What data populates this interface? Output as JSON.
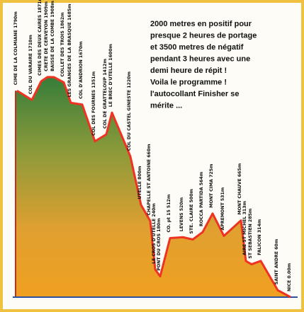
{
  "chart_data": {
    "type": "elevation-profile",
    "points": [
      {
        "label": "CIME DE LA COLMIANE 1790m",
        "value": 1790
      },
      {
        "label": "COL DU VARAIRE 1710m",
        "value": 1710
      },
      {
        "label": "CIMES DES DEUX CAIRES 1871m",
        "value": 1871
      },
      {
        "label": "CRETE DE CERVEYON 1909m",
        "value": 1909
      },
      {
        "label": "BAISSE DE LA COMBE 1908m",
        "value": 1908
      },
      {
        "label": "COLLET DES TROIS 1862m",
        "value": 1862
      },
      {
        "label": "LES GRANGES DE LA BRASQUE 1685m",
        "value": 1685
      },
      {
        "label": "COL D'ANDRION 1670m",
        "value": 1670
      },
      {
        "label": "COL DES FOURNES 1351m",
        "value": 1351
      },
      {
        "label": "COL DE GRATTELOUP 1412m",
        "value": 1412
      },
      {
        "label": "LE BREC D'UTELLE 1600m",
        "value": 1600
      },
      {
        "label": "COL DU CASTEL GINESTE 1220m",
        "value": 1220
      },
      {
        "label": "UTELLE 800m",
        "value": 800
      },
      {
        "label": "CHAPELLE ST ANTOINE 660m",
        "value": 660
      },
      {
        "label": "LE CROS D'UTELLE 240m",
        "value": 240
      },
      {
        "label": "PONT DU CROS 180m",
        "value": 180
      },
      {
        "label": "CO. pt 15 512m",
        "value": 512
      },
      {
        "label": "LEVENS 520m",
        "value": 520
      },
      {
        "label": "STE. CLAIRE 500m",
        "value": 500
      },
      {
        "label": "ROCCA PARTIDA 564m",
        "value": 564
      },
      {
        "label": "MONT CIMA 725m",
        "value": 725
      },
      {
        "label": "APREMONT 531m",
        "value": 531
      },
      {
        "label": "MONT CHAUVE 665m",
        "value": 665
      },
      {
        "label": "AIRE ST MICHEL 313m",
        "value": 313
      },
      {
        "label": "ST SEBASTIEN 285m",
        "value": 285
      },
      {
        "label": "FALICON 314m",
        "value": 314
      },
      {
        "label": "SAINT ANDRE 60m",
        "value": 60
      },
      {
        "label": "NICE 0.00m",
        "value": 0
      }
    ],
    "line_color": "#ee3322",
    "note": [
      "2000 metres en positif pour",
      "presque 2 heures de portage",
      "et 3500 metres de négatif",
      "pendant 3 heures avec une",
      "demi heure de répit !",
      "Voila le programme !",
      "l'autocollant Finisher se",
      "mérite ..."
    ]
  }
}
